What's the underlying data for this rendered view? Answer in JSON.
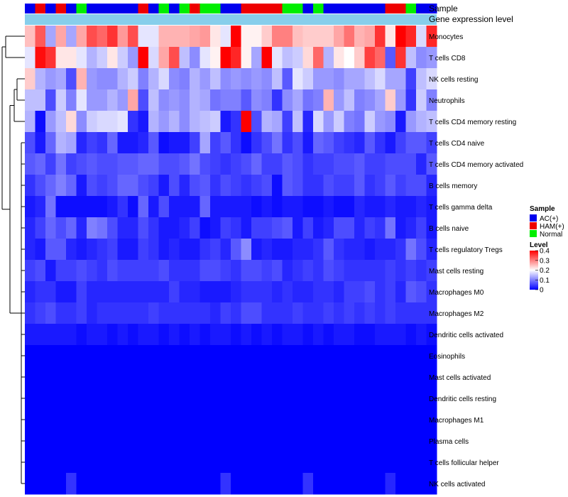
{
  "chart_data": {
    "type": "heatmap",
    "title": "",
    "annotation_rows": [
      "Sample",
      "Gene expression level"
    ],
    "rows": [
      "Monocytes",
      "T cells CD8",
      "NK cells resting",
      "Neutrophils",
      "T cells CD4 memory resting",
      "T cells CD4 naive",
      "T cells CD4 memory activated",
      "B cells memory",
      "T cells gamma delta",
      "B cells naive",
      "T cells regulatory  Tregs",
      "Mast cells resting",
      "Macrophages M0",
      "Macrophages M2",
      "Dendritic cells activated",
      "Eosinophils",
      "Mast cells activated",
      "Dendritic cells resting",
      "Macrophages M1",
      "Plasma cells",
      "T cells follicular helper",
      "NK cells activated"
    ],
    "sample_groups": [
      "AC",
      "HAM",
      "AC",
      "HAM",
      "AC",
      "N",
      "AC",
      "AC",
      "AC",
      "AC",
      "AC",
      "HAM",
      "AC",
      "N",
      "AC",
      "N",
      "HAM",
      "N",
      "N",
      "AC",
      "AC",
      "HAM",
      "HAM",
      "HAM",
      "HAM",
      "N",
      "N",
      "AC",
      "N",
      "AC",
      "AC",
      "AC",
      "AC",
      "AC",
      "AC",
      "HAM",
      "HAM",
      "N",
      "AC",
      "AC"
    ],
    "values": [
      [
        0.25,
        0.33,
        0.13,
        0.27,
        0.13,
        0.27,
        0.34,
        0.32,
        0.36,
        0.28,
        0.34,
        0.18,
        0.18,
        0.26,
        0.26,
        0.26,
        0.27,
        0.28,
        0.22,
        0.18,
        0.4,
        0.21,
        0.21,
        0.24,
        0.3,
        0.3,
        0.25,
        0.24,
        0.24,
        0.24,
        0.27,
        0.31,
        0.26,
        0.27,
        0.36,
        0.22,
        0.4,
        0.37,
        0.17,
        0.37
      ],
      [
        0.18,
        0.39,
        0.36,
        0.22,
        0.22,
        0.18,
        0.14,
        0.16,
        0.22,
        0.16,
        0.12,
        0.4,
        0.17,
        0.27,
        0.34,
        0.15,
        0.11,
        0.18,
        0.21,
        0.4,
        0.37,
        0.21,
        0.13,
        0.4,
        0.18,
        0.15,
        0.16,
        0.23,
        0.32,
        0.14,
        0.22,
        0.2,
        0.24,
        0.35,
        0.32,
        0.07,
        0.36,
        0.15,
        0.11,
        0.12
      ],
      [
        0.24,
        0.14,
        0.12,
        0.13,
        0.06,
        0.26,
        0.12,
        0.11,
        0.11,
        0.14,
        0.16,
        0.1,
        0.14,
        0.17,
        0.11,
        0.1,
        0.14,
        0.12,
        0.15,
        0.11,
        0.12,
        0.11,
        0.12,
        0.11,
        0.15,
        0.07,
        0.18,
        0.16,
        0.12,
        0.12,
        0.11,
        0.13,
        0.13,
        0.15,
        0.17,
        0.13,
        0.13,
        0.05,
        0.15,
        0.17
      ],
      [
        0.15,
        0.15,
        0.06,
        0.16,
        0.1,
        0.18,
        0.12,
        0.12,
        0.14,
        0.12,
        0.27,
        0.06,
        0.15,
        0.11,
        0.12,
        0.11,
        0.14,
        0.13,
        0.09,
        0.1,
        0.1,
        0.07,
        0.11,
        0.1,
        0.04,
        0.11,
        0.13,
        0.09,
        0.1,
        0.26,
        0.12,
        0.15,
        0.1,
        0.11,
        0.13,
        0.24,
        0.12,
        0.04,
        0.16,
        0.1
      ],
      [
        0.14,
        0.01,
        0.12,
        0.15,
        0.23,
        0.11,
        0.16,
        0.17,
        0.17,
        0.18,
        0.04,
        0.02,
        0.14,
        0.12,
        0.14,
        0.11,
        0.14,
        0.15,
        0.16,
        0.02,
        0.04,
        0.4,
        0.06,
        0.14,
        0.13,
        0.05,
        0.15,
        0.03,
        0.17,
        0.12,
        0.16,
        0.1,
        0.09,
        0.16,
        0.12,
        0.11,
        0.02,
        0.12,
        0.14,
        0.15
      ],
      [
        0.06,
        0.02,
        0.08,
        0.14,
        0.13,
        0.03,
        0.05,
        0.04,
        0.08,
        0.02,
        0.02,
        0.03,
        0.07,
        0.01,
        0.02,
        0.02,
        0.05,
        0.13,
        0.05,
        0.07,
        0.04,
        0.01,
        0.04,
        0.06,
        0.09,
        0.04,
        0.06,
        0.02,
        0.08,
        0.07,
        0.05,
        0.04,
        0.03,
        0.07,
        0.04,
        0.02,
        0.05,
        0.07,
        0.07,
        0.05
      ],
      [
        0.07,
        0.08,
        0.05,
        0.09,
        0.05,
        0.06,
        0.07,
        0.06,
        0.06,
        0.07,
        0.07,
        0.08,
        0.08,
        0.06,
        0.06,
        0.07,
        0.09,
        0.06,
        0.05,
        0.04,
        0.05,
        0.06,
        0.08,
        0.05,
        0.05,
        0.07,
        0.06,
        0.04,
        0.05,
        0.05,
        0.06,
        0.06,
        0.07,
        0.05,
        0.05,
        0.06,
        0.06,
        0.06,
        0.03,
        0.07
      ],
      [
        0.04,
        0.06,
        0.08,
        0.1,
        0.08,
        0.02,
        0.06,
        0.05,
        0.06,
        0.08,
        0.08,
        0.06,
        0.05,
        0.02,
        0.06,
        0.03,
        0.06,
        0.07,
        0.04,
        0.06,
        0.05,
        0.04,
        0.05,
        0.06,
        0.01,
        0.07,
        0.06,
        0.04,
        0.04,
        0.06,
        0.05,
        0.05,
        0.07,
        0.04,
        0.05,
        0.07,
        0.05,
        0.06,
        0.06,
        0.03
      ],
      [
        0.02,
        0.03,
        0.09,
        0.01,
        0.01,
        0.01,
        0.01,
        0.01,
        0.02,
        0.04,
        0.01,
        0.08,
        0.02,
        0.06,
        0.02,
        0.02,
        0.02,
        0.08,
        0.02,
        0.02,
        0.02,
        0.02,
        0.01,
        0.02,
        0.01,
        0.02,
        0.02,
        0.01,
        0.01,
        0.02,
        0.01,
        0.01,
        0.03,
        0.02,
        0.02,
        0.03,
        0.02,
        0.02,
        0.03,
        0.02
      ],
      [
        0.03,
        0.05,
        0.08,
        0.06,
        0.08,
        0.03,
        0.1,
        0.09,
        0.06,
        0.03,
        0.03,
        0.06,
        0.04,
        0.02,
        0.02,
        0.03,
        0.05,
        0.01,
        0.02,
        0.05,
        0.04,
        0.02,
        0.05,
        0.05,
        0.06,
        0.07,
        0.02,
        0.05,
        0.02,
        0.03,
        0.06,
        0.06,
        0.03,
        0.05,
        0.04,
        0.09,
        0.02,
        0.03,
        0.05,
        0.02
      ],
      [
        0.03,
        0.02,
        0.07,
        0.07,
        0.03,
        0.02,
        0.03,
        0.04,
        0.05,
        0.02,
        0.02,
        0.05,
        0.04,
        0.02,
        0.03,
        0.02,
        0.02,
        0.04,
        0.05,
        0.03,
        0.07,
        0.11,
        0.02,
        0.03,
        0.02,
        0.02,
        0.03,
        0.03,
        0.04,
        0.07,
        0.04,
        0.03,
        0.03,
        0.02,
        0.03,
        0.03,
        0.04,
        0.09,
        0.06,
        0.03
      ],
      [
        0.05,
        0.06,
        0.02,
        0.05,
        0.05,
        0.06,
        0.05,
        0.04,
        0.06,
        0.05,
        0.05,
        0.05,
        0.05,
        0.06,
        0.04,
        0.04,
        0.04,
        0.06,
        0.06,
        0.05,
        0.04,
        0.06,
        0.06,
        0.05,
        0.06,
        0.03,
        0.04,
        0.05,
        0.04,
        0.06,
        0.05,
        0.04,
        0.04,
        0.04,
        0.04,
        0.05,
        0.04,
        0.05,
        0.04,
        0.05
      ],
      [
        0.03,
        0.04,
        0.04,
        0.02,
        0.02,
        0.05,
        0.03,
        0.03,
        0.03,
        0.03,
        0.03,
        0.03,
        0.03,
        0.03,
        0.05,
        0.03,
        0.03,
        0.02,
        0.02,
        0.02,
        0.03,
        0.04,
        0.04,
        0.04,
        0.03,
        0.04,
        0.03,
        0.03,
        0.04,
        0.04,
        0.03,
        0.05,
        0.05,
        0.06,
        0.04,
        0.05,
        0.03,
        0.07,
        0.06,
        0.04
      ],
      [
        0.04,
        0.05,
        0.06,
        0.04,
        0.04,
        0.05,
        0.03,
        0.04,
        0.04,
        0.04,
        0.04,
        0.04,
        0.05,
        0.04,
        0.04,
        0.04,
        0.04,
        0.04,
        0.03,
        0.05,
        0.04,
        0.06,
        0.06,
        0.04,
        0.04,
        0.04,
        0.05,
        0.04,
        0.04,
        0.05,
        0.04,
        0.05,
        0.04,
        0.05,
        0.04,
        0.05,
        0.04,
        0.04,
        0.04,
        0.04
      ],
      [
        0.02,
        0.02,
        0.02,
        0.02,
        0.02,
        0.01,
        0.02,
        0.02,
        0.01,
        0.02,
        0.01,
        0.02,
        0.02,
        0.01,
        0.02,
        0.01,
        0.02,
        0.01,
        0.02,
        0.02,
        0.01,
        0.02,
        0.01,
        0.02,
        0.01,
        0.02,
        0.02,
        0.01,
        0.02,
        0.01,
        0.02,
        0.02,
        0.01,
        0.01,
        0.02,
        0.02,
        0.02,
        0.01,
        0.02,
        0.01
      ],
      [
        0,
        0,
        0,
        0,
        0,
        0,
        0,
        0,
        0,
        0,
        0,
        0,
        0,
        0,
        0,
        0,
        0,
        0,
        0,
        0,
        0,
        0,
        0,
        0,
        0,
        0,
        0,
        0,
        0,
        0,
        0,
        0,
        0,
        0,
        0,
        0,
        0,
        0,
        0,
        0
      ],
      [
        0,
        0,
        0,
        0,
        0,
        0,
        0,
        0,
        0,
        0,
        0,
        0,
        0,
        0,
        0,
        0,
        0,
        0,
        0,
        0,
        0,
        0,
        0,
        0,
        0,
        0,
        0,
        0,
        0,
        0,
        0,
        0,
        0,
        0,
        0,
        0,
        0,
        0,
        0,
        0
      ],
      [
        0,
        0,
        0,
        0,
        0,
        0,
        0,
        0,
        0,
        0,
        0,
        0,
        0,
        0,
        0,
        0,
        0,
        0,
        0,
        0,
        0,
        0,
        0,
        0,
        0,
        0,
        0,
        0,
        0,
        0,
        0,
        0,
        0,
        0,
        0,
        0,
        0,
        0,
        0,
        0
      ],
      [
        0,
        0,
        0,
        0,
        0,
        0,
        0,
        0,
        0,
        0,
        0,
        0,
        0,
        0,
        0,
        0,
        0,
        0,
        0,
        0,
        0,
        0,
        0,
        0,
        0,
        0,
        0,
        0,
        0,
        0,
        0,
        0,
        0,
        0,
        0,
        0,
        0,
        0,
        0,
        0
      ],
      [
        0,
        0,
        0,
        0,
        0,
        0,
        0,
        0,
        0,
        0,
        0,
        0,
        0,
        0,
        0,
        0,
        0,
        0,
        0,
        0,
        0,
        0,
        0,
        0,
        0,
        0,
        0,
        0,
        0,
        0,
        0,
        0,
        0,
        0,
        0,
        0,
        0,
        0,
        0,
        0
      ],
      [
        0,
        0,
        0,
        0,
        0,
        0,
        0,
        0,
        0,
        0,
        0,
        0,
        0,
        0,
        0,
        0,
        0,
        0,
        0,
        0,
        0,
        0,
        0,
        0,
        0,
        0,
        0,
        0,
        0,
        0,
        0,
        0,
        0,
        0,
        0,
        0,
        0,
        0,
        0,
        0
      ],
      [
        0,
        0,
        0,
        0,
        0.04,
        0,
        0,
        0,
        0,
        0,
        0,
        0,
        0,
        0,
        0,
        0,
        0,
        0,
        0,
        0.04,
        0,
        0,
        0,
        0,
        0,
        0,
        0,
        0.04,
        0,
        0,
        0,
        0,
        0,
        0,
        0,
        0.03,
        0,
        0,
        0,
        0
      ]
    ],
    "legend": {
      "sample_title": "Sample",
      "sample_entries": [
        {
          "key": "AC",
          "label": "AC(+)",
          "color": "#0000ee"
        },
        {
          "key": "HAM",
          "label": "HAM(+)",
          "color": "#ee0000"
        },
        {
          "key": "N",
          "label": "Normal",
          "color": "#00ee00"
        }
      ],
      "level_title": "Level",
      "level_ticks": [
        0.4,
        0.3,
        0.2,
        0.1,
        0
      ],
      "level_tick_labels": [
        "0.4",
        "0.3",
        "0.2",
        "0.1",
        "0"
      ],
      "level_range": [
        0,
        0.4
      ]
    },
    "colors": {
      "low": "#0000ff",
      "mid": "#ffffff",
      "high": "#ff0000",
      "expression_bar": "#87ceeb"
    }
  }
}
